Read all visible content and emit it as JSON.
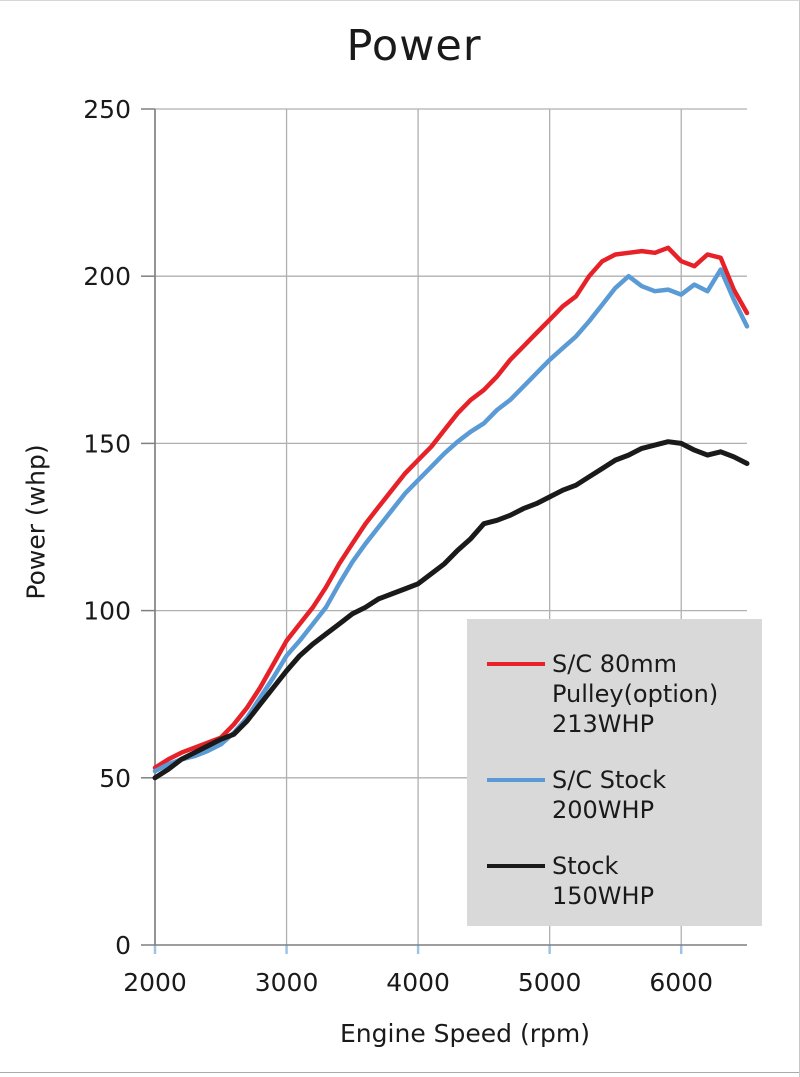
{
  "title": "Power",
  "chart_data": {
    "type": "line",
    "title": "Power",
    "xlabel": "Engine Speed (rpm)",
    "ylabel": "Power (whp)",
    "xlim": [
      2000,
      6500
    ],
    "ylim": [
      0,
      250
    ],
    "x_ticks": [
      2000,
      3000,
      4000,
      5000,
      6000
    ],
    "y_ticks": [
      0,
      50,
      100,
      150,
      200,
      250
    ],
    "grid": true,
    "legend_position": "lower-right",
    "x": [
      2000,
      2100,
      2200,
      2300,
      2400,
      2500,
      2600,
      2700,
      2800,
      2900,
      3000,
      3100,
      3200,
      3300,
      3400,
      3500,
      3600,
      3700,
      3800,
      3900,
      4000,
      4100,
      4200,
      4300,
      4400,
      4500,
      4600,
      4700,
      4800,
      4900,
      5000,
      5100,
      5200,
      5300,
      5400,
      5500,
      5600,
      5700,
      5800,
      5900,
      6000,
      6100,
      6200,
      6300,
      6400,
      6500
    ],
    "series": [
      {
        "name": "S/C 80mm Pulley(option) 213WHP",
        "legend_lines": [
          "S/C 80mm",
          "Pulley(option)",
          "213WHP"
        ],
        "color": "#e62228",
        "stroke_width": 4.5,
        "values": [
          53,
          55.5,
          57.5,
          59,
          60.5,
          62,
          66,
          71,
          77,
          84,
          91,
          96,
          101,
          107,
          114,
          120,
          126,
          131,
          136,
          141,
          145,
          149,
          154,
          159,
          163,
          166,
          170,
          175,
          179,
          183,
          187,
          191,
          194,
          200,
          204.5,
          206.5,
          207,
          207.5,
          207,
          208.5,
          204.5,
          203,
          206.5,
          205.5,
          196,
          189
        ]
      },
      {
        "name": "S/C Stock 200WHP",
        "legend_lines": [
          "S/C Stock",
          "200WHP"
        ],
        "color": "#5b9bd5",
        "stroke_width": 4.5,
        "values": [
          52,
          54,
          55.5,
          56.5,
          58,
          60,
          63.5,
          68,
          74,
          80,
          86.5,
          91,
          96,
          101,
          108,
          114.5,
          120,
          125,
          130,
          135,
          139,
          143,
          147,
          150.5,
          153.5,
          156,
          160,
          163,
          167,
          171,
          175,
          178.5,
          182,
          186.5,
          191.5,
          196.5,
          200,
          197,
          195.5,
          196,
          194.5,
          197.5,
          195.5,
          202,
          193,
          185
        ]
      },
      {
        "name": "Stock 150WHP",
        "legend_lines": [
          "Stock",
          "150WHP"
        ],
        "color": "#1a1a1a",
        "stroke_width": 5,
        "values": [
          50,
          52.5,
          55.5,
          57.5,
          59.5,
          61.5,
          63,
          67,
          72,
          77,
          82,
          86.5,
          90,
          93,
          96,
          99,
          101,
          103.5,
          105,
          106.5,
          108,
          111,
          114,
          118,
          121.5,
          126,
          127,
          128.5,
          130.5,
          132,
          134,
          136,
          137.5,
          140,
          142.5,
          145,
          146.5,
          148.5,
          149.5,
          150.5,
          150,
          148,
          146.5,
          147.5,
          146,
          144
        ]
      }
    ],
    "colors": {
      "grid": "#b0b0b0",
      "axis": "#7f7f7f",
      "x_tick": "#9dc3e6",
      "text": "#1a1a1a",
      "legend_bg": "#d9d9d9",
      "background": "#ffffff"
    }
  }
}
